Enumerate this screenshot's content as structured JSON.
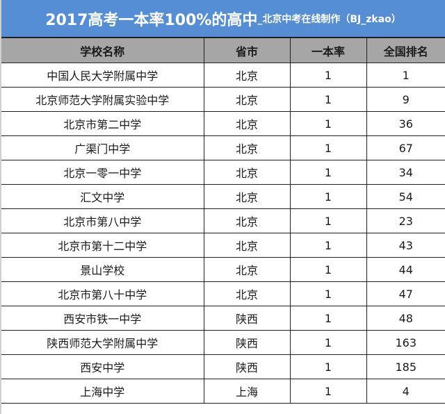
{
  "title": {
    "main": "2017高考一本率100%的高中",
    "sub": "_北京中考在线制作（BJ_zkao）"
  },
  "colors": {
    "title_bg": "#558ed5",
    "header_bg": "#a6a6a6",
    "border": "#1f1f1f"
  },
  "table": {
    "headers": [
      "学校名称",
      "省市",
      "一本率",
      "全国排名"
    ],
    "rows": [
      [
        "中国人民大学附属中学",
        "北京",
        "1",
        "1"
      ],
      [
        "北京师范大学附属实验中学",
        "北京",
        "1",
        "9"
      ],
      [
        "北京市第二中学",
        "北京",
        "1",
        "36"
      ],
      [
        "广渠门中学",
        "北京",
        "1",
        "67"
      ],
      [
        "北京一零一中学",
        "北京",
        "1",
        "34"
      ],
      [
        "汇文中学",
        "北京",
        "1",
        "54"
      ],
      [
        "北京市第八中学",
        "北京",
        "1",
        "23"
      ],
      [
        "北京市第十二中学",
        "北京",
        "1",
        "43"
      ],
      [
        "景山学校",
        "北京",
        "1",
        "44"
      ],
      [
        "北京市第八十中学",
        "北京",
        "1",
        "47"
      ],
      [
        "西安市铁一中学",
        "陕西",
        "1",
        "48"
      ],
      [
        "陕西师范大学附属中学",
        "陕西",
        "1",
        "163"
      ],
      [
        "西安中学",
        "陕西",
        "1",
        "185"
      ],
      [
        "上海中学",
        "上海",
        "1",
        "4"
      ]
    ]
  }
}
